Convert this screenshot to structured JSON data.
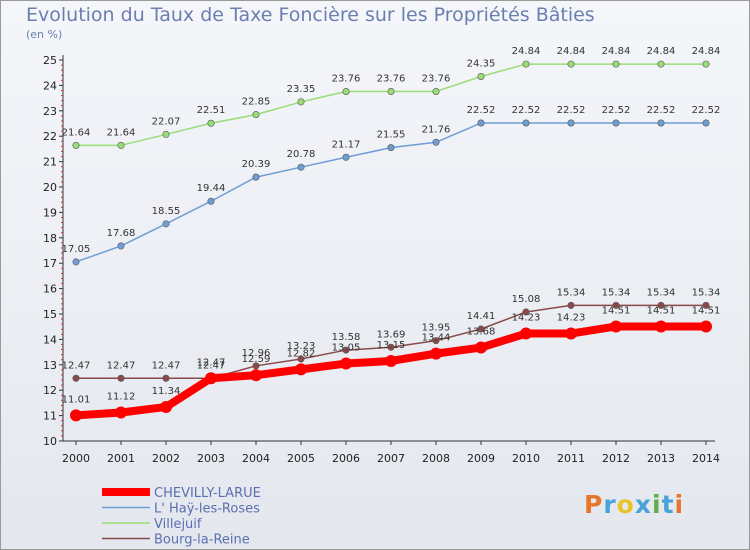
{
  "chart_data": {
    "type": "line",
    "title": "Evolution du Taux de Taxe Foncière sur les Propriétés Bâties",
    "subtitle": "(en %)",
    "x": [
      "2000",
      "2001",
      "2002",
      "2003",
      "2004",
      "2005",
      "2006",
      "2007",
      "2008",
      "2009",
      "2010",
      "2011",
      "2012",
      "2013",
      "2014"
    ],
    "ylim": [
      10,
      25
    ],
    "yticks": [
      10,
      11,
      12,
      13,
      14,
      15,
      16,
      17,
      18,
      19,
      20,
      21,
      22,
      23,
      24,
      25
    ],
    "grid": false,
    "legend_position": "bottom-left",
    "series": [
      {
        "name": "CHEVILLY-LARUE",
        "color": "#ff0000",
        "values": [
          11.01,
          11.12,
          11.34,
          12.47,
          12.59,
          12.82,
          13.05,
          13.15,
          13.44,
          13.68,
          14.23,
          14.23,
          14.51,
          14.51,
          14.51
        ],
        "labels": [
          "11.01",
          "11.12",
          "11.34",
          "12.47",
          "12.59",
          "12.82",
          "13.05",
          "13.15",
          "13.44",
          "13.68",
          "14.23",
          "14.23",
          "14.51",
          "14.51",
          "14.51"
        ]
      },
      {
        "name": "L' Haÿ-les-Roses",
        "color": "#6f9ed4",
        "values": [
          17.05,
          17.68,
          18.55,
          19.44,
          20.39,
          20.78,
          21.17,
          21.55,
          21.76,
          22.52,
          22.52,
          22.52,
          22.52,
          22.52,
          22.52
        ],
        "labels": [
          "17.05",
          "17.68",
          "18.55",
          "19.44",
          "20.39",
          "20.78",
          "21.17",
          "21.55",
          "21.76",
          "22.52",
          "22.52",
          "22.52",
          "22.52",
          "22.52",
          "22.52"
        ]
      },
      {
        "name": "Villejuif",
        "color": "#99dd77",
        "values": [
          21.64,
          21.64,
          22.07,
          22.51,
          22.85,
          23.35,
          23.76,
          23.76,
          23.76,
          24.35,
          24.84,
          24.84,
          24.84,
          24.84,
          24.84
        ],
        "labels": [
          "21.64",
          "21.64",
          "22.07",
          "22.51",
          "22.85",
          "23.35",
          "23.76",
          "23.76",
          "23.76",
          "24.35",
          "24.84",
          "24.84",
          "24.84",
          "24.84",
          "24.84"
        ]
      },
      {
        "name": "Bourg-la-Reine",
        "color": "#8a4a4a",
        "values": [
          12.47,
          12.47,
          12.47,
          12.47,
          12.96,
          13.23,
          13.58,
          13.69,
          13.95,
          14.41,
          15.08,
          15.34,
          15.34,
          15.34,
          15.34
        ],
        "labels": [
          "12.47",
          "12.47",
          "12.47",
          "12.47",
          "12.96",
          "13.23",
          "13.58",
          "13.69",
          "13.95",
          "14.41",
          "15.08",
          "15.34",
          "15.34",
          "15.34",
          "15.34"
        ]
      }
    ]
  },
  "brand": {
    "text": "Proxiti",
    "colors": [
      "#e8762a",
      "#4aa3d8",
      "#e8c42a",
      "#4aa3d8",
      "#5fb04a",
      "#4aa3d8",
      "#e8762a"
    ]
  }
}
